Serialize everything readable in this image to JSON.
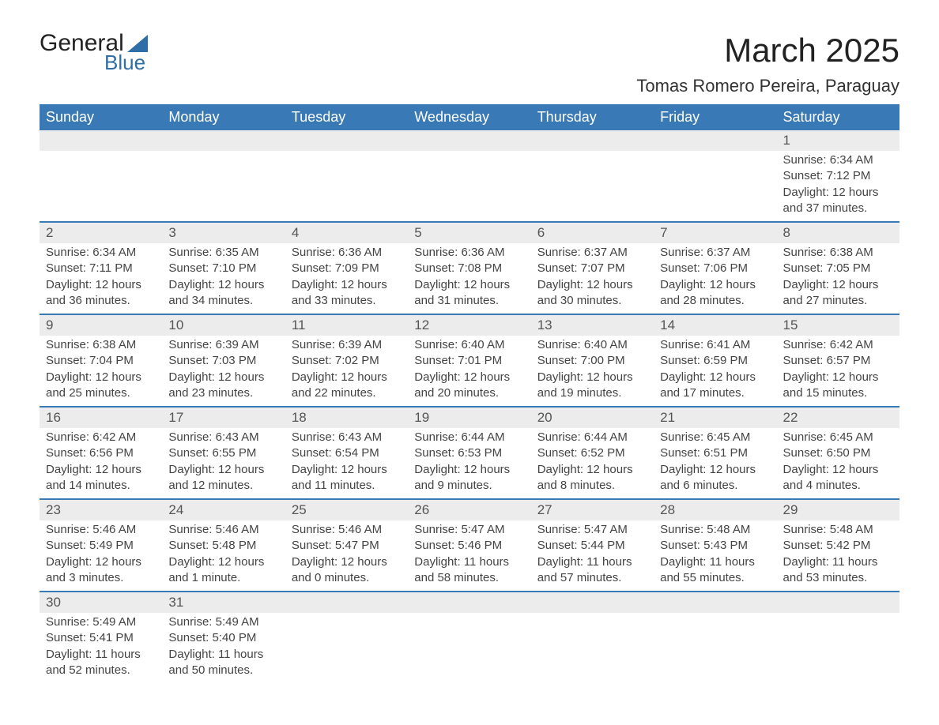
{
  "logo": {
    "text1": "General",
    "text2": "Blue"
  },
  "title": "March 2025",
  "location": "Tomas Romero Pereira, Paraguay",
  "styling": {
    "header_bg": "#3879b6",
    "header_text_color": "#ffffff",
    "daynum_bg": "#ececec",
    "row_divider_color": "#3879b6",
    "body_text_color": "#444444",
    "title_color": "#222222",
    "logo_accent": "#2f6fa7",
    "page_bg": "#ffffff",
    "font_family": "Arial",
    "title_fontsize_pt": 32,
    "location_fontsize_pt": 16,
    "header_fontsize_pt": 14,
    "cell_fontsize_pt": 11
  },
  "weekdays": [
    "Sunday",
    "Monday",
    "Tuesday",
    "Wednesday",
    "Thursday",
    "Friday",
    "Saturday"
  ],
  "weeks": [
    [
      null,
      null,
      null,
      null,
      null,
      null,
      {
        "n": "1",
        "sr": "Sunrise: 6:34 AM",
        "ss": "Sunset: 7:12 PM",
        "dl": "Daylight: 12 hours and 37 minutes."
      }
    ],
    [
      {
        "n": "2",
        "sr": "Sunrise: 6:34 AM",
        "ss": "Sunset: 7:11 PM",
        "dl": "Daylight: 12 hours and 36 minutes."
      },
      {
        "n": "3",
        "sr": "Sunrise: 6:35 AM",
        "ss": "Sunset: 7:10 PM",
        "dl": "Daylight: 12 hours and 34 minutes."
      },
      {
        "n": "4",
        "sr": "Sunrise: 6:36 AM",
        "ss": "Sunset: 7:09 PM",
        "dl": "Daylight: 12 hours and 33 minutes."
      },
      {
        "n": "5",
        "sr": "Sunrise: 6:36 AM",
        "ss": "Sunset: 7:08 PM",
        "dl": "Daylight: 12 hours and 31 minutes."
      },
      {
        "n": "6",
        "sr": "Sunrise: 6:37 AM",
        "ss": "Sunset: 7:07 PM",
        "dl": "Daylight: 12 hours and 30 minutes."
      },
      {
        "n": "7",
        "sr": "Sunrise: 6:37 AM",
        "ss": "Sunset: 7:06 PM",
        "dl": "Daylight: 12 hours and 28 minutes."
      },
      {
        "n": "8",
        "sr": "Sunrise: 6:38 AM",
        "ss": "Sunset: 7:05 PM",
        "dl": "Daylight: 12 hours and 27 minutes."
      }
    ],
    [
      {
        "n": "9",
        "sr": "Sunrise: 6:38 AM",
        "ss": "Sunset: 7:04 PM",
        "dl": "Daylight: 12 hours and 25 minutes."
      },
      {
        "n": "10",
        "sr": "Sunrise: 6:39 AM",
        "ss": "Sunset: 7:03 PM",
        "dl": "Daylight: 12 hours and 23 minutes."
      },
      {
        "n": "11",
        "sr": "Sunrise: 6:39 AM",
        "ss": "Sunset: 7:02 PM",
        "dl": "Daylight: 12 hours and 22 minutes."
      },
      {
        "n": "12",
        "sr": "Sunrise: 6:40 AM",
        "ss": "Sunset: 7:01 PM",
        "dl": "Daylight: 12 hours and 20 minutes."
      },
      {
        "n": "13",
        "sr": "Sunrise: 6:40 AM",
        "ss": "Sunset: 7:00 PM",
        "dl": "Daylight: 12 hours and 19 minutes."
      },
      {
        "n": "14",
        "sr": "Sunrise: 6:41 AM",
        "ss": "Sunset: 6:59 PM",
        "dl": "Daylight: 12 hours and 17 minutes."
      },
      {
        "n": "15",
        "sr": "Sunrise: 6:42 AM",
        "ss": "Sunset: 6:57 PM",
        "dl": "Daylight: 12 hours and 15 minutes."
      }
    ],
    [
      {
        "n": "16",
        "sr": "Sunrise: 6:42 AM",
        "ss": "Sunset: 6:56 PM",
        "dl": "Daylight: 12 hours and 14 minutes."
      },
      {
        "n": "17",
        "sr": "Sunrise: 6:43 AM",
        "ss": "Sunset: 6:55 PM",
        "dl": "Daylight: 12 hours and 12 minutes."
      },
      {
        "n": "18",
        "sr": "Sunrise: 6:43 AM",
        "ss": "Sunset: 6:54 PM",
        "dl": "Daylight: 12 hours and 11 minutes."
      },
      {
        "n": "19",
        "sr": "Sunrise: 6:44 AM",
        "ss": "Sunset: 6:53 PM",
        "dl": "Daylight: 12 hours and 9 minutes."
      },
      {
        "n": "20",
        "sr": "Sunrise: 6:44 AM",
        "ss": "Sunset: 6:52 PM",
        "dl": "Daylight: 12 hours and 8 minutes."
      },
      {
        "n": "21",
        "sr": "Sunrise: 6:45 AM",
        "ss": "Sunset: 6:51 PM",
        "dl": "Daylight: 12 hours and 6 minutes."
      },
      {
        "n": "22",
        "sr": "Sunrise: 6:45 AM",
        "ss": "Sunset: 6:50 PM",
        "dl": "Daylight: 12 hours and 4 minutes."
      }
    ],
    [
      {
        "n": "23",
        "sr": "Sunrise: 5:46 AM",
        "ss": "Sunset: 5:49 PM",
        "dl": "Daylight: 12 hours and 3 minutes."
      },
      {
        "n": "24",
        "sr": "Sunrise: 5:46 AM",
        "ss": "Sunset: 5:48 PM",
        "dl": "Daylight: 12 hours and 1 minute."
      },
      {
        "n": "25",
        "sr": "Sunrise: 5:46 AM",
        "ss": "Sunset: 5:47 PM",
        "dl": "Daylight: 12 hours and 0 minutes."
      },
      {
        "n": "26",
        "sr": "Sunrise: 5:47 AM",
        "ss": "Sunset: 5:46 PM",
        "dl": "Daylight: 11 hours and 58 minutes."
      },
      {
        "n": "27",
        "sr": "Sunrise: 5:47 AM",
        "ss": "Sunset: 5:44 PM",
        "dl": "Daylight: 11 hours and 57 minutes."
      },
      {
        "n": "28",
        "sr": "Sunrise: 5:48 AM",
        "ss": "Sunset: 5:43 PM",
        "dl": "Daylight: 11 hours and 55 minutes."
      },
      {
        "n": "29",
        "sr": "Sunrise: 5:48 AM",
        "ss": "Sunset: 5:42 PM",
        "dl": "Daylight: 11 hours and 53 minutes."
      }
    ],
    [
      {
        "n": "30",
        "sr": "Sunrise: 5:49 AM",
        "ss": "Sunset: 5:41 PM",
        "dl": "Daylight: 11 hours and 52 minutes."
      },
      {
        "n": "31",
        "sr": "Sunrise: 5:49 AM",
        "ss": "Sunset: 5:40 PM",
        "dl": "Daylight: 11 hours and 50 minutes."
      },
      null,
      null,
      null,
      null,
      null
    ]
  ]
}
